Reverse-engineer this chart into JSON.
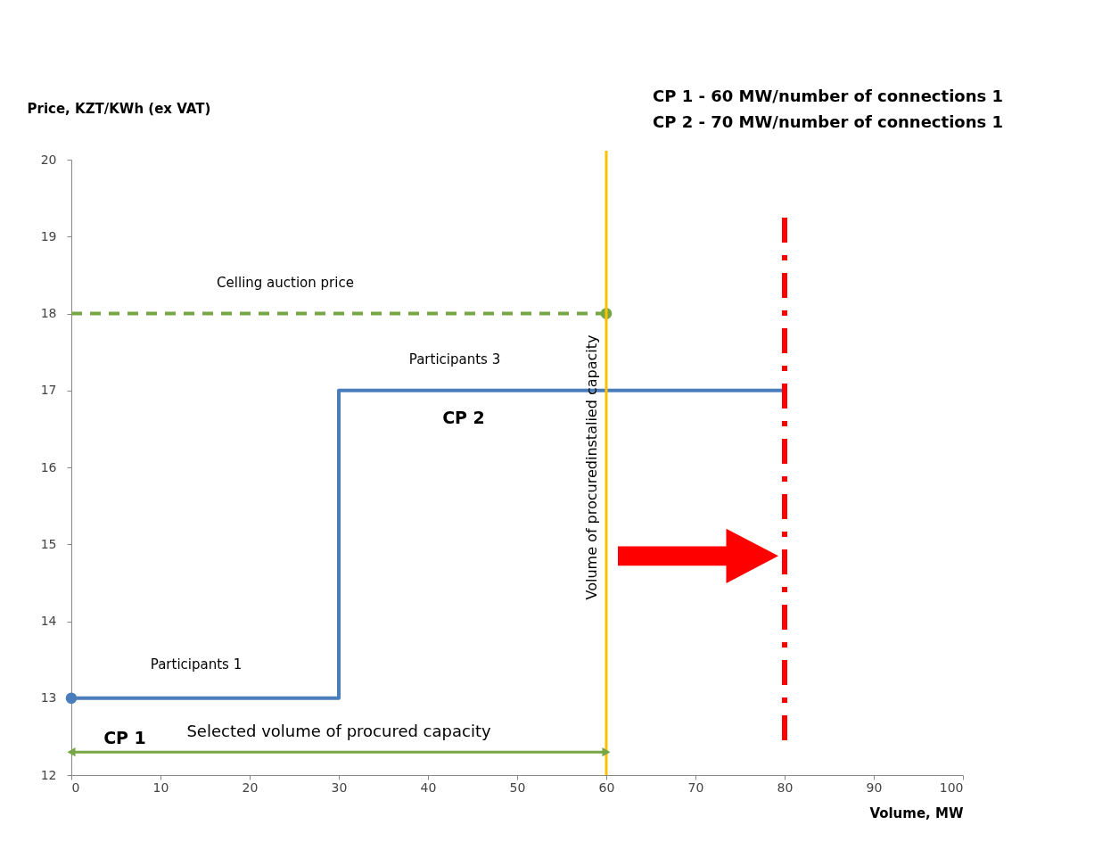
{
  "chart_data": {
    "type": "step",
    "xlabel": "Volume, MW",
    "ylabel": "Price, KZT/KWh (ex VAT)",
    "series": [
      {
        "x": [
          0,
          30,
          80
        ],
        "values": [
          13,
          17,
          17
        ],
        "color": "#4a7ebb"
      },
      {
        "type": "line",
        "x": [
          0,
          60
        ],
        "values": [
          18,
          18
        ],
        "color": "#77a645",
        "line_style": "dashed"
      },
      {
        "type": "scatter",
        "x": [
          0
        ],
        "values": [
          13
        ],
        "color": "#4a7ebb"
      },
      {
        "type": "scatter",
        "x": [
          60
        ],
        "values": [
          18
        ],
        "color": "#77a645"
      }
    ],
    "xlim": [
      0,
      100
    ],
    "xticks": [
      0,
      10,
      20,
      30,
      40,
      50,
      60,
      70,
      80,
      90,
      100
    ],
    "ylim": [
      12,
      20
    ],
    "yticks": [
      12,
      13,
      14,
      15,
      16,
      17,
      18,
      19,
      20
    ],
    "grid": false,
    "ref_lines": [
      {
        "axis": "x",
        "value": 60,
        "label": "Volume of procuredinstalied capacity",
        "color": "#ffc000",
        "line_style": "solid"
      },
      {
        "axis": "x",
        "value": 80,
        "label": null,
        "color": "#ff0000",
        "line_style": "dashdot"
      }
    ],
    "annotations": [
      "CP 1 - 60 MW/number of connections 1",
      "CP 2 - 70 MW/number of connections 1",
      "Celling auction price",
      "Participants 3",
      "CP 2",
      "Participants 1",
      "CP 1",
      "Selected volume of procured capacity"
    ]
  }
}
